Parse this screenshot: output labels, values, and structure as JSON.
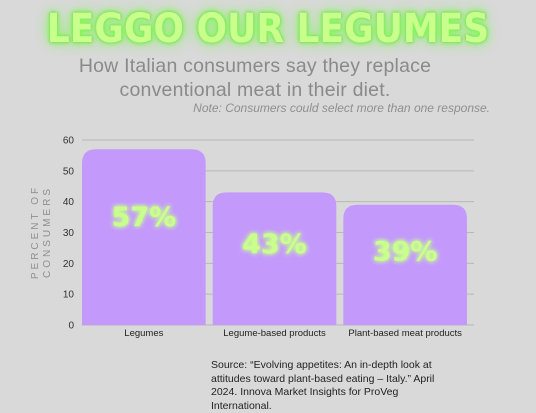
{
  "header": {
    "title": "LEGGO OUR LEGUMES",
    "subtitle": "How Italian consumers say they replace conventional meat in their diet.",
    "note": "Note: Consumers could select more than one response."
  },
  "footer": {
    "source": "Source: “Evolving appetites: An in-depth look at attitudes toward plant-based eating – Italy.” April 2024. Innova Market Insights for ProVeg International."
  },
  "colors": {
    "bar": "#c39afc",
    "label_glow": "#c9ff8c",
    "grid": "#b8b8b8",
    "background": "#d9d9d9"
  },
  "chart_data": {
    "type": "bar",
    "categories": [
      "Legumes",
      "Legume-based products",
      "Plant-based meat products"
    ],
    "values": [
      57,
      43,
      39
    ],
    "data_labels": [
      "57%",
      "43%",
      "39%"
    ],
    "title": "LEGGO OUR LEGUMES",
    "xlabel": "",
    "ylabel": "PERCENT OF CONSUMERS",
    "ylim": [
      0,
      60
    ],
    "yticks": [
      0,
      10,
      20,
      30,
      40,
      50,
      60
    ],
    "grid": true
  }
}
